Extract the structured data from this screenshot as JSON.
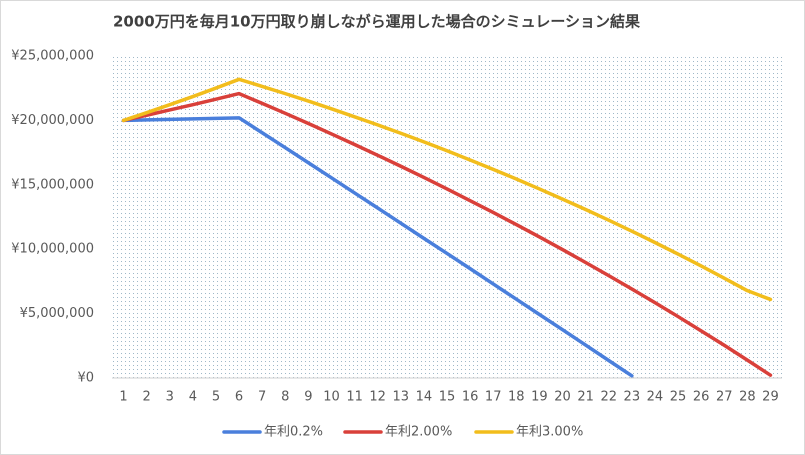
{
  "chart_data": {
    "type": "line",
    "title": "2000万円を毎月10万円取り崩しながら運用した場合のシミュレーション結果",
    "categories": [
      "1",
      "2",
      "3",
      "4",
      "5",
      "6",
      "7",
      "8",
      "9",
      "10",
      "11",
      "12",
      "13",
      "14",
      "15",
      "16",
      "17",
      "18",
      "19",
      "20",
      "21",
      "22",
      "23",
      "24",
      "25",
      "26",
      "27",
      "28",
      "29"
    ],
    "series": [
      {
        "name": "年利0.2%",
        "color": "#4a7fdc",
        "values": [
          20000000,
          20040000,
          20080000,
          20120000,
          20160000,
          20200000,
          19040000,
          17880000,
          16710000,
          15540000,
          14370000,
          13200000,
          12020000,
          10840000,
          9670000,
          8490000,
          7300000,
          6120000,
          4930000,
          3750000,
          2560000,
          1360000,
          170000,
          null,
          null,
          null,
          null,
          null,
          null
        ]
      },
      {
        "name": "年利2.00%",
        "color": "#d9403a",
        "values": [
          20000000,
          20400000,
          20810000,
          21220000,
          21650000,
          22080000,
          21320000,
          20550000,
          19760000,
          18950000,
          18130000,
          17290000,
          16440000,
          15570000,
          14680000,
          13770000,
          12850000,
          11910000,
          10950000,
          9970000,
          8970000,
          7950000,
          6910000,
          5850000,
          4770000,
          3660000,
          2540000,
          1390000,
          220000
        ]
      },
      {
        "name": "年利3.00%",
        "color": "#f2bd1c",
        "values": [
          20000000,
          20600000,
          21220000,
          21850000,
          22510000,
          23190000,
          22640000,
          22080000,
          21500000,
          20900000,
          20280000,
          19650000,
          19000000,
          18330000,
          17640000,
          16930000,
          16200000,
          15450000,
          14680000,
          13890000,
          13080000,
          12250000,
          11400000,
          10520000,
          9620000,
          8700000,
          7750000,
          6780000,
          6100000
        ]
      }
    ],
    "ylim": [
      0,
      25000000
    ],
    "yticks": [
      {
        "value": 0,
        "label": "¥0"
      },
      {
        "value": 5000000,
        "label": "¥5,000,000"
      },
      {
        "value": 10000000,
        "label": "¥10,000,000"
      },
      {
        "value": 15000000,
        "label": "¥15,000,000"
      },
      {
        "value": 20000000,
        "label": "¥20,000,000"
      },
      {
        "value": 25000000,
        "label": "¥25,000,000"
      }
    ],
    "grid": false,
    "legend": "bottom"
  }
}
